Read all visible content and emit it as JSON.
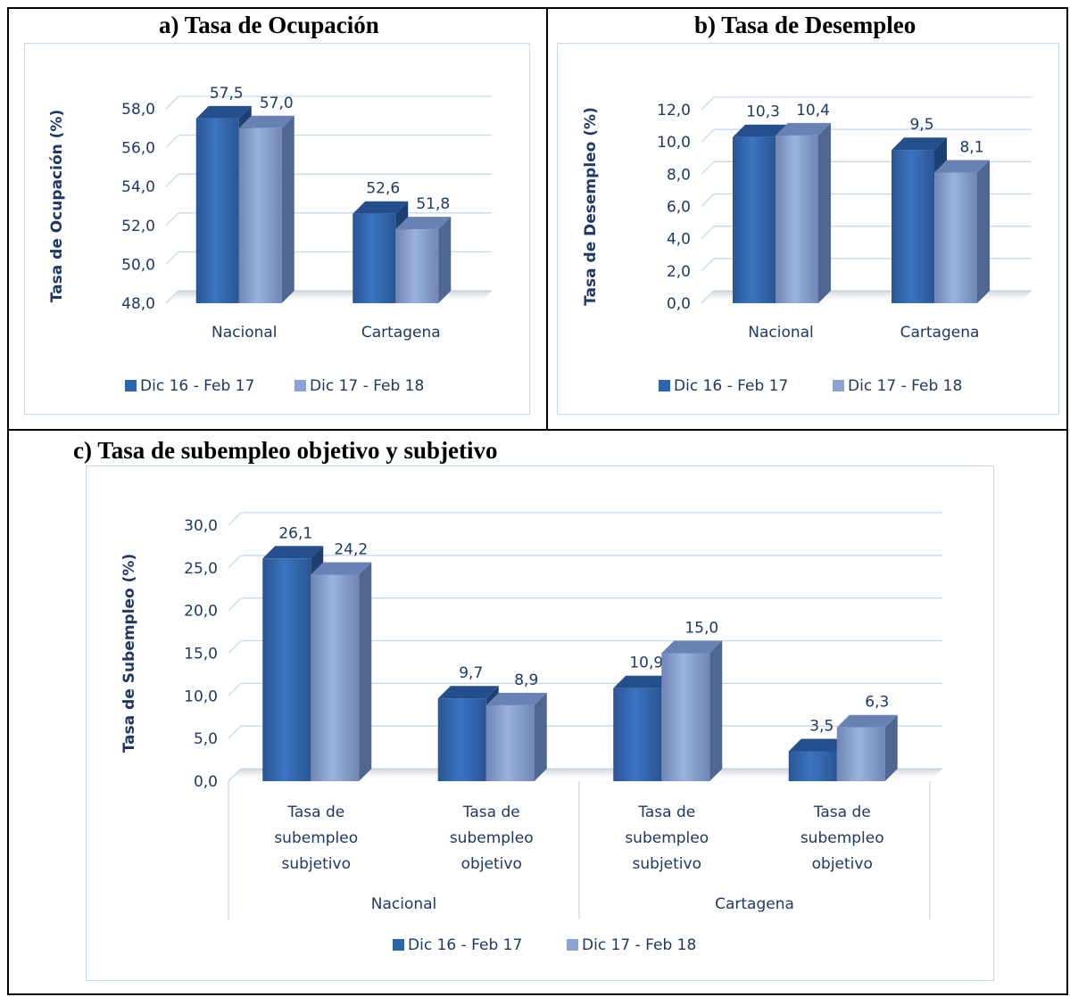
{
  "panel_a": {
    "title": "a)  Tasa de Ocupación"
  },
  "panel_b": {
    "title": "b)  Tasa de Desempleo"
  },
  "panel_c": {
    "title": "c)  Tasa de subempleo objetivo y subjetivo"
  },
  "colors": {
    "series1": "#2e64ab",
    "series2": "#8aa4d6",
    "text": "#1f3864",
    "grid": "#c6d9ec"
  },
  "chart_data": [
    {
      "type": "bar",
      "ylabel": "Tasa de Ocupación (%)",
      "ylim": [
        48,
        58
      ],
      "ytick_labels": [
        "48,0",
        "50,0",
        "52,0",
        "54,0",
        "56,0",
        "58,0"
      ],
      "categories": [
        "Nacional",
        "Cartagena"
      ],
      "series": [
        {
          "name": "Dic 16 - Feb 17",
          "values": [
            57.5,
            52.6
          ],
          "labels": [
            "57,5",
            "52,6"
          ]
        },
        {
          "name": "Dic 17 - Feb 18",
          "values": [
            57.0,
            51.8
          ],
          "labels": [
            "57,0",
            "51,8"
          ]
        }
      ],
      "legend": "bottom",
      "grid": true
    },
    {
      "type": "bar",
      "ylabel": "Tasa de Desempleo  (%)",
      "ylim": [
        0,
        12
      ],
      "ytick_labels": [
        "0,0",
        "2,0",
        "4,0",
        "6,0",
        "8,0",
        "10,0",
        "12,0"
      ],
      "categories": [
        "Nacional",
        "Cartagena"
      ],
      "series": [
        {
          "name": "Dic 16 - Feb 17",
          "values": [
            10.3,
            9.5
          ],
          "labels": [
            "10,3",
            "9,5"
          ]
        },
        {
          "name": "Dic 17 - Feb 18",
          "values": [
            10.4,
            8.1
          ],
          "labels": [
            "10,4",
            "8,1"
          ]
        }
      ],
      "legend": "bottom",
      "grid": true
    },
    {
      "type": "bar",
      "ylabel": "Tasa de Subempleo (%)",
      "ylim": [
        0,
        30
      ],
      "ytick_labels": [
        "0,0",
        "5,0",
        "10,0",
        "15,0",
        "20,0",
        "25,0",
        "30,0"
      ],
      "categories": [
        [
          "Tasa de",
          "subempleo",
          "subjetivo"
        ],
        [
          "Tasa de",
          "subempleo",
          "objetivo"
        ],
        [
          "Tasa de",
          "subempleo",
          "subjetivo"
        ],
        [
          "Tasa de",
          "subempleo",
          "objetivo"
        ]
      ],
      "groups": [
        "Nacional",
        "Cartagena"
      ],
      "series": [
        {
          "name": "Dic 16 - Feb 17",
          "values": [
            26.1,
            9.7,
            10.9,
            3.5
          ],
          "labels": [
            "26,1",
            "9,7",
            "10,9",
            "3,5"
          ]
        },
        {
          "name": "Dic 17 - Feb 18",
          "values": [
            24.2,
            8.9,
            15.0,
            6.3
          ],
          "labels": [
            "24,2",
            "8,9",
            "15,0",
            "6,3"
          ]
        }
      ],
      "legend": "bottom",
      "grid": true
    }
  ]
}
